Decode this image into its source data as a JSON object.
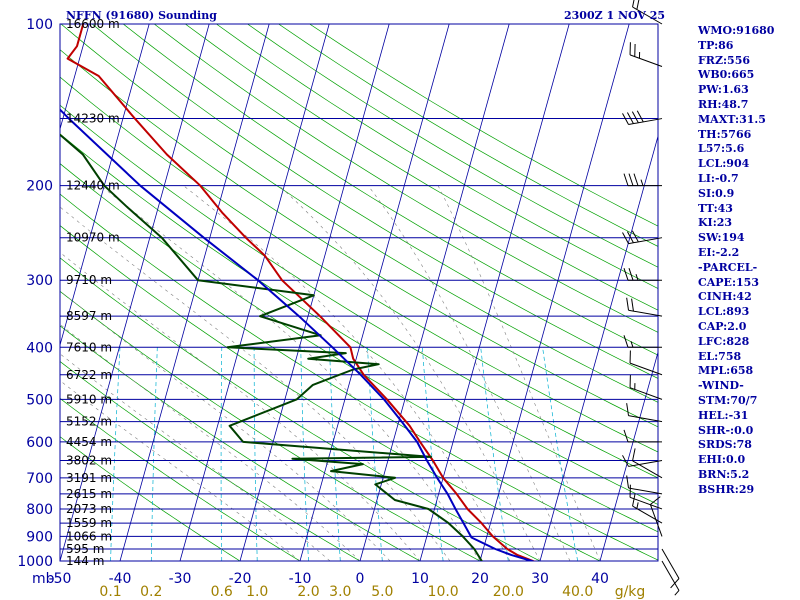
{
  "header": {
    "station": "NFFN (91680) Sounding",
    "time": "2300Z  1 NOV 25"
  },
  "indices": [
    "WMO:91680",
    "TP:86",
    "FRZ:556",
    "WB0:665",
    "PW:1.63",
    "RH:48.7",
    "MAXT:31.5",
    "TH:5766",
    "L57:5.6",
    "LCL:904",
    "LI:-0.7",
    "SI:0.9",
    "TT:43",
    "KI:23",
    "SW:194",
    "EI:-2.2",
    "-PARCEL-",
    "CAPE:153",
    "CINH:42",
    "LCL:893",
    "CAP:2.0",
    "LFC:828",
    "EL:758",
    "MPL:658",
    "-WIND-",
    "STM:70/7",
    "HEL:-31",
    "SHR-:0.0",
    "SRDS:78",
    "EHI:0.0",
    "BRN:5.2",
    "BSHR:29"
  ],
  "colors": {
    "isobar": "#0000a0",
    "isotherm": "#0000a0",
    "dry_adiabat": "#00a000",
    "mixing_ratio": "#00b0d0",
    "moist_adiabat": "#808080",
    "temperature": "#c00000",
    "dewpoint": "#004000",
    "parcel": "#0000c0",
    "mixing_ratio_labels": "#a08000",
    "label_text": "#000000"
  },
  "chart_data": {
    "type": "skew-T log-P",
    "pressure_axis": {
      "unit": "mb",
      "label": "mb",
      "ticks": [
        100,
        200,
        300,
        400,
        500,
        600,
        700,
        800,
        900,
        1000
      ],
      "range": [
        1000,
        100
      ],
      "scale": "log"
    },
    "temperature_axis": {
      "ticks": [
        -50,
        -40,
        -30,
        -20,
        -10,
        0,
        10,
        20,
        30,
        40
      ],
      "tick_labels": [
        "-50",
        "-40",
        "-30",
        "-20",
        "-10",
        "0",
        "10",
        "20",
        "30",
        "40"
      ],
      "range": [
        -50,
        50
      ]
    },
    "height_labels": [
      {
        "p": 100,
        "text": "16600 m"
      },
      {
        "p": 150,
        "text": "14230 m"
      },
      {
        "p": 200,
        "text": "12440 m"
      },
      {
        "p": 250,
        "text": "10970 m"
      },
      {
        "p": 300,
        "text": "9710 m"
      },
      {
        "p": 350,
        "text": "8597 m"
      },
      {
        "p": 400,
        "text": "7610 m"
      },
      {
        "p": 450,
        "text": "6722 m"
      },
      {
        "p": 500,
        "text": "5910 m"
      },
      {
        "p": 550,
        "text": "5152 m"
      },
      {
        "p": 600,
        "text": "4454 m"
      },
      {
        "p": 650,
        "text": "3802 m"
      },
      {
        "p": 700,
        "text": "3191 m"
      },
      {
        "p": 750,
        "text": "2615 m"
      },
      {
        "p": 800,
        "text": "2073 m"
      },
      {
        "p": 850,
        "text": "1559 m"
      },
      {
        "p": 900,
        "text": "1066 m"
      },
      {
        "p": 950,
        "text": "595 m"
      },
      {
        "p": 1000,
        "text": "144 m"
      }
    ],
    "mixing_ratio_labels": [
      "0.1",
      "0.2",
      "0.6",
      "1.0",
      "2.0",
      "3.0",
      "5.0",
      "10.0",
      "20.0",
      "40.0"
    ],
    "mixing_ratio_values": [
      0.1,
      0.2,
      0.6,
      1.0,
      2.0,
      3.0,
      5.0,
      10.0,
      20.0,
      40.0
    ],
    "mixing_ratio_unit": "g/kg",
    "series": [
      {
        "name": "temperature",
        "points": [
          [
            1006,
            29.5
          ],
          [
            975,
            26
          ],
          [
            950,
            24
          ],
          [
            925,
            22.5
          ],
          [
            900,
            21
          ],
          [
            850,
            18.5
          ],
          [
            800,
            15.5
          ],
          [
            750,
            13
          ],
          [
            700,
            10
          ],
          [
            650,
            7.5
          ],
          [
            600,
            4.5
          ],
          [
            560,
            2
          ],
          [
            500,
            -3
          ],
          [
            450,
            -8
          ],
          [
            420,
            -10.5
          ],
          [
            400,
            -11.5
          ],
          [
            350,
            -18
          ],
          [
            300,
            -26
          ],
          [
            270,
            -30
          ],
          [
            250,
            -34
          ],
          [
            225,
            -39
          ],
          [
            200,
            -44
          ],
          [
            175,
            -51
          ],
          [
            150,
            -58
          ],
          [
            125,
            -66
          ],
          [
            116,
            -72
          ],
          [
            110,
            -71
          ],
          [
            100,
            -71
          ]
        ]
      },
      {
        "name": "dewpoint",
        "points": [
          [
            1006,
            20.5
          ],
          [
            950,
            18.5
          ],
          [
            900,
            16
          ],
          [
            850,
            13
          ],
          [
            800,
            9
          ],
          [
            770,
            3
          ],
          [
            720,
            -1
          ],
          [
            700,
            2
          ],
          [
            680,
            -9
          ],
          [
            660,
            -4
          ],
          [
            645,
            -16
          ],
          [
            640,
            7
          ],
          [
            600,
            -25
          ],
          [
            560,
            -28
          ],
          [
            500,
            -18
          ],
          [
            470,
            -16
          ],
          [
            440,
            -10
          ],
          [
            430,
            -6
          ],
          [
            420,
            -18
          ],
          [
            410,
            -12
          ],
          [
            400,
            -32
          ],
          [
            380,
            -17
          ],
          [
            350,
            -28
          ],
          [
            320,
            -20
          ],
          [
            300,
            -40
          ],
          [
            250,
            -48
          ],
          [
            220,
            -55
          ],
          [
            200,
            -60
          ],
          [
            175,
            -65
          ],
          [
            160,
            -70
          ],
          [
            150,
            -72
          ],
          [
            140,
            -73
          ],
          [
            130,
            -74
          ],
          [
            100,
            -80
          ]
        ]
      },
      {
        "name": "parcel",
        "points": [
          [
            1006,
            29.5
          ],
          [
            975,
            25
          ],
          [
            950,
            22
          ],
          [
            904,
            17.5
          ],
          [
            850,
            15.5
          ],
          [
            800,
            13.5
          ],
          [
            750,
            11.5
          ],
          [
            700,
            9
          ],
          [
            650,
            6.5
          ],
          [
            600,
            4
          ],
          [
            550,
            0.5
          ],
          [
            500,
            -3.5
          ],
          [
            450,
            -8.5
          ],
          [
            400,
            -14.5
          ],
          [
            350,
            -21.5
          ],
          [
            300,
            -30
          ],
          [
            250,
            -41
          ],
          [
            200,
            -54
          ],
          [
            150,
            -69
          ],
          [
            125,
            -78
          ]
        ]
      }
    ],
    "winds": [
      {
        "p": 1000,
        "dir": 150,
        "spd": 5
      },
      {
        "p": 950,
        "dir": 150,
        "spd": 10
      },
      {
        "p": 900,
        "dir": 340,
        "spd": 10
      },
      {
        "p": 850,
        "dir": 300,
        "spd": 15
      },
      {
        "p": 800,
        "dir": 290,
        "spd": 10
      },
      {
        "p": 750,
        "dir": 280,
        "spd": 10
      },
      {
        "p": 700,
        "dir": 300,
        "spd": 10
      },
      {
        "p": 650,
        "dir": 260,
        "spd": 10
      },
      {
        "p": 600,
        "dir": 270,
        "spd": 10
      },
      {
        "p": 550,
        "dir": 280,
        "spd": 10
      },
      {
        "p": 500,
        "dir": 290,
        "spd": 15
      },
      {
        "p": 450,
        "dir": 290,
        "spd": 10
      },
      {
        "p": 400,
        "dir": 270,
        "spd": 15
      },
      {
        "p": 350,
        "dir": 280,
        "spd": 20
      },
      {
        "p": 300,
        "dir": 270,
        "spd": 25
      },
      {
        "p": 250,
        "dir": 260,
        "spd": 30
      },
      {
        "p": 200,
        "dir": 270,
        "spd": 35
      },
      {
        "p": 150,
        "dir": 260,
        "spd": 40
      },
      {
        "p": 120,
        "dir": 290,
        "spd": 25
      },
      {
        "p": 100,
        "dir": 300,
        "spd": 20
      }
    ]
  }
}
